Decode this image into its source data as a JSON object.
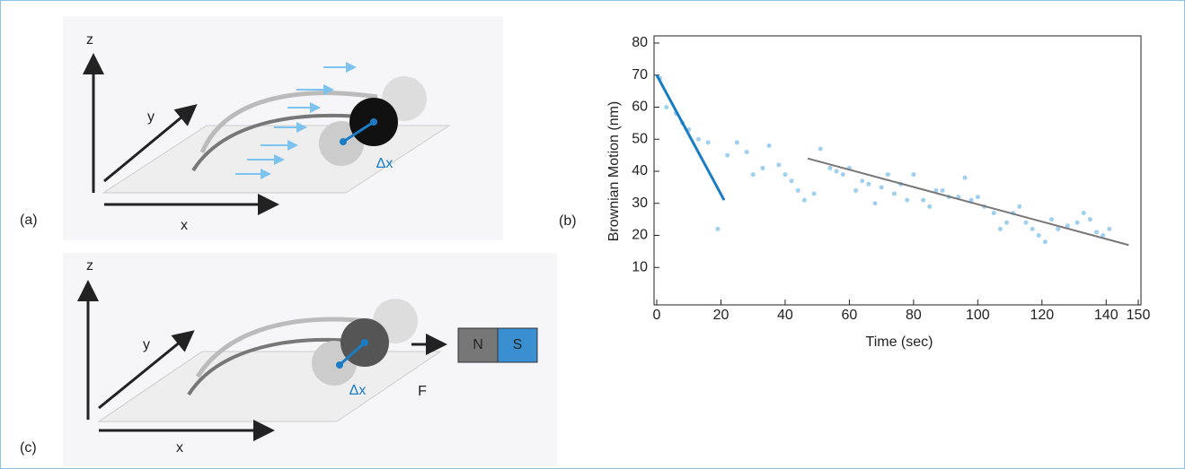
{
  "panels": {
    "a": {
      "label": "(a)",
      "z": "z",
      "y": "y",
      "x": "x",
      "dx": "Δx"
    },
    "b": {
      "label": "(b)"
    },
    "c": {
      "label": "(c)",
      "z": "z",
      "y": "y",
      "x": "x",
      "dx": "Δx",
      "force": "F",
      "north": "N",
      "south": "S"
    }
  },
  "chart_data": {
    "type": "scatter",
    "xlabel": "Time (sec)",
    "ylabel": "Brownian Motion (nm)",
    "xlim": [
      0,
      150
    ],
    "ylim": [
      0,
      80
    ],
    "xticks": [
      0,
      20,
      40,
      60,
      80,
      100,
      120,
      140,
      150
    ],
    "yticks": [
      10,
      20,
      30,
      40,
      50,
      60,
      70,
      80
    ],
    "points": {
      "color": "#9fd0f0",
      "x": [
        1,
        3,
        6,
        8,
        10,
        13,
        16,
        19,
        22,
        25,
        28,
        30,
        33,
        35,
        38,
        40,
        42,
        44,
        46,
        49,
        51,
        54,
        56,
        58,
        60,
        62,
        64,
        66,
        68,
        70,
        72,
        74,
        76,
        78,
        80,
        83,
        85,
        87,
        89,
        91,
        94,
        96,
        98,
        100,
        102,
        105,
        107,
        109,
        111,
        113,
        115,
        117,
        119,
        121,
        123,
        125,
        128,
        131,
        133,
        135,
        137,
        139,
        141
      ],
      "y": [
        69,
        60,
        58,
        55,
        53,
        50,
        49,
        22,
        45,
        49,
        46,
        39,
        41,
        48,
        42,
        39,
        37,
        34,
        31,
        33,
        47,
        41,
        40,
        39,
        41,
        34,
        37,
        36,
        30,
        35,
        39,
        33,
        36,
        31,
        39,
        31,
        29,
        34,
        34,
        32,
        32,
        38,
        31,
        32,
        29,
        27,
        22,
        24,
        27,
        29,
        24,
        22,
        20,
        18,
        25,
        22,
        23,
        24,
        27,
        25,
        21,
        20,
        22
      ]
    },
    "fit_lines": [
      {
        "color": "#1a7cc4",
        "x": [
          0,
          21
        ],
        "y": [
          70,
          31
        ]
      },
      {
        "color": "#777777",
        "x": [
          47,
          147
        ],
        "y": [
          44,
          17
        ]
      }
    ]
  }
}
